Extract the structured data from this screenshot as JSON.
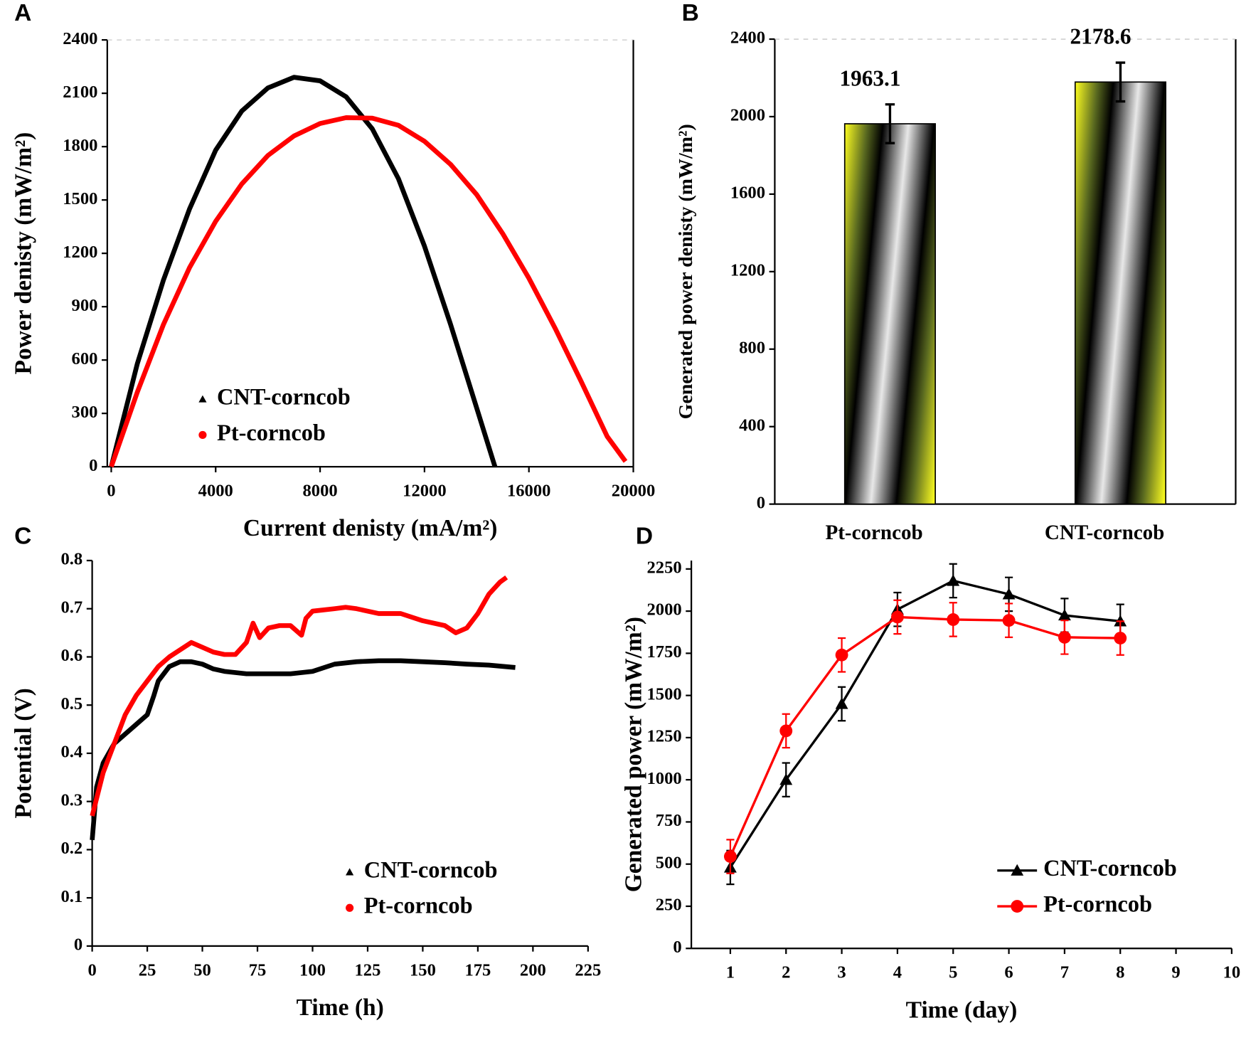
{
  "chart_data": [
    {
      "type": "line",
      "panel": "A",
      "xlabel": "Current  denisty (mA/m²)",
      "ylabel": "Power denisty (mW/m²)",
      "xlim": [
        0,
        20000
      ],
      "xticks": [
        0,
        4000,
        8000,
        12000,
        16000,
        20000
      ],
      "ylim": [
        0,
        2400
      ],
      "yticks": [
        0,
        300,
        600,
        900,
        1200,
        1500,
        1800,
        2100,
        2400
      ],
      "frame": true,
      "series": [
        {
          "name": "CNT-corncob",
          "color": "#000000",
          "marker": "triangle",
          "x": [
            0,
            1000,
            2000,
            3000,
            4000,
            5000,
            6000,
            7000,
            8000,
            9000,
            10000,
            11000,
            12000,
            13000,
            14000,
            14700
          ],
          "values": [
            0,
            580,
            1050,
            1450,
            1780,
            2000,
            2130,
            2190,
            2170,
            2080,
            1900,
            1620,
            1240,
            800,
            330,
            0
          ]
        },
        {
          "name": "Pt-corncob",
          "color": "#ff0000",
          "marker": "circle",
          "x": [
            0,
            1000,
            2000,
            3000,
            4000,
            5000,
            6000,
            7000,
            8000,
            9000,
            10000,
            11000,
            12000,
            13000,
            14000,
            15000,
            16000,
            17000,
            18000,
            19000,
            19700
          ],
          "values": [
            0,
            420,
            800,
            1120,
            1380,
            1590,
            1750,
            1860,
            1930,
            1963,
            1960,
            1920,
            1830,
            1700,
            1530,
            1310,
            1060,
            780,
            480,
            170,
            30
          ]
        }
      ]
    },
    {
      "type": "bar",
      "panel": "B",
      "ylabel": "Generated power denisty  (mW/m²)",
      "categories": [
        "Pt-corncob",
        "CNT-corncob"
      ],
      "values": [
        1963.1,
        2178.6
      ],
      "errors": [
        100,
        100
      ],
      "label_colors": [
        "#000000",
        "#ff0000"
      ],
      "ylim": [
        0,
        2400
      ],
      "yticks": [
        0,
        400,
        800,
        1200,
        1600,
        2000,
        2400
      ],
      "frame": true
    },
    {
      "type": "line",
      "panel": "C",
      "xlabel": "Time (h)",
      "ylabel": "Potential (V)",
      "xlim": [
        0,
        225
      ],
      "xticks": [
        0,
        25,
        50,
        75,
        100,
        125,
        150,
        175,
        200,
        225
      ],
      "ylim": [
        0,
        0.8
      ],
      "yticks": [
        0,
        0.1,
        0.2,
        0.3,
        0.4,
        0.5,
        0.6,
        0.7,
        0.8
      ],
      "frame": false,
      "series": [
        {
          "name": "CNT-corncob",
          "color": "#000000",
          "marker": "triangle",
          "x": [
            0,
            2,
            5,
            10,
            15,
            20,
            25,
            28,
            30,
            35,
            40,
            45,
            50,
            55,
            60,
            70,
            80,
            90,
            100,
            110,
            120,
            130,
            140,
            150,
            160,
            170,
            180,
            192
          ],
          "values": [
            0.22,
            0.33,
            0.38,
            0.42,
            0.44,
            0.46,
            0.48,
            0.52,
            0.55,
            0.58,
            0.59,
            0.59,
            0.585,
            0.575,
            0.57,
            0.565,
            0.565,
            0.565,
            0.57,
            0.585,
            0.59,
            0.592,
            0.592,
            0.59,
            0.588,
            0.585,
            0.583,
            0.578
          ]
        },
        {
          "name": "Pt-corncob",
          "color": "#ff0000",
          "marker": "circle",
          "x": [
            0,
            5,
            10,
            15,
            20,
            25,
            30,
            35,
            40,
            45,
            50,
            55,
            60,
            65,
            70,
            73,
            76,
            80,
            85,
            90,
            95,
            97,
            100,
            110,
            115,
            120,
            130,
            140,
            150,
            160,
            165,
            170,
            175,
            180,
            185,
            188
          ],
          "values": [
            0.27,
            0.36,
            0.42,
            0.48,
            0.52,
            0.55,
            0.58,
            0.6,
            0.615,
            0.63,
            0.62,
            0.61,
            0.605,
            0.605,
            0.63,
            0.67,
            0.64,
            0.66,
            0.665,
            0.665,
            0.645,
            0.68,
            0.695,
            0.7,
            0.703,
            0.7,
            0.69,
            0.69,
            0.675,
            0.665,
            0.65,
            0.66,
            0.69,
            0.73,
            0.755,
            0.765
          ]
        }
      ]
    },
    {
      "type": "line",
      "panel": "D",
      "xlabel": "Time (day)",
      "ylabel": "Generated power  (mW/m²)",
      "xlim": [
        0.3,
        10
      ],
      "xticks": [
        1,
        2,
        3,
        4,
        5,
        6,
        7,
        8,
        9,
        10
      ],
      "ylim": [
        0,
        2300
      ],
      "yticks": [
        0,
        250,
        500,
        750,
        1000,
        1250,
        1500,
        1750,
        2000,
        2250
      ],
      "frame": false,
      "series": [
        {
          "name": "CNT-corncob",
          "color": "#000000",
          "marker": "triangle",
          "x": [
            1,
            2,
            3,
            4,
            5,
            6,
            7,
            8
          ],
          "values": [
            480,
            1000,
            1450,
            2010,
            2180,
            2100,
            1975,
            1940
          ],
          "errors": [
            100,
            100,
            100,
            100,
            100,
            100,
            100,
            100
          ]
        },
        {
          "name": "Pt-corncob",
          "color": "#ff0000",
          "marker": "circle",
          "x": [
            1,
            2,
            3,
            4,
            5,
            6,
            7,
            8
          ],
          "values": [
            545,
            1290,
            1740,
            1965,
            1950,
            1945,
            1845,
            1840
          ],
          "errors": [
            100,
            100,
            100,
            100,
            100,
            100,
            100,
            100
          ]
        }
      ]
    }
  ]
}
